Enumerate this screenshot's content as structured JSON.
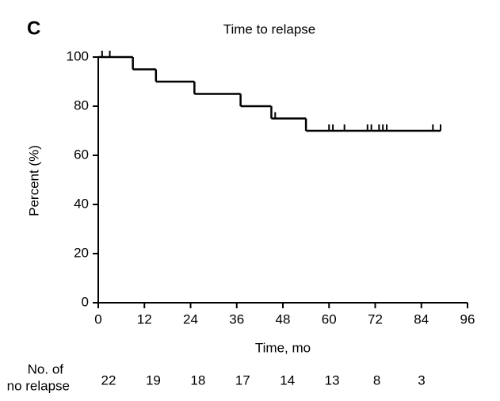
{
  "panel_label": "C",
  "chart_data": {
    "type": "step",
    "title": "Time to relapse",
    "x_label": "Time, mo",
    "y_label": "Percent (%)",
    "x": [
      0,
      9,
      15,
      25,
      37,
      45,
      54,
      89
    ],
    "values": [
      100,
      95,
      90,
      85,
      80,
      75,
      70,
      70
    ],
    "censor_x": [
      1,
      3,
      46,
      60,
      61,
      64,
      70,
      71,
      73,
      74,
      75,
      87,
      89
    ],
    "censor_values": [
      100,
      100,
      75,
      70,
      70,
      70,
      70,
      70,
      70,
      70,
      70,
      70,
      70
    ],
    "color": "#000000",
    "xlim": [
      0,
      96
    ],
    "xticks": [
      0,
      12,
      24,
      36,
      48,
      60,
      72,
      84,
      96
    ],
    "ylim": [
      0,
      100
    ],
    "yticks": [
      0,
      20,
      40,
      60,
      80,
      100
    ],
    "risk_table": {
      "label_lines": [
        "No. of",
        "no relapse"
      ],
      "values": [
        "22",
        "19",
        "18",
        "17",
        "14",
        "13",
        "8",
        "3"
      ]
    }
  }
}
